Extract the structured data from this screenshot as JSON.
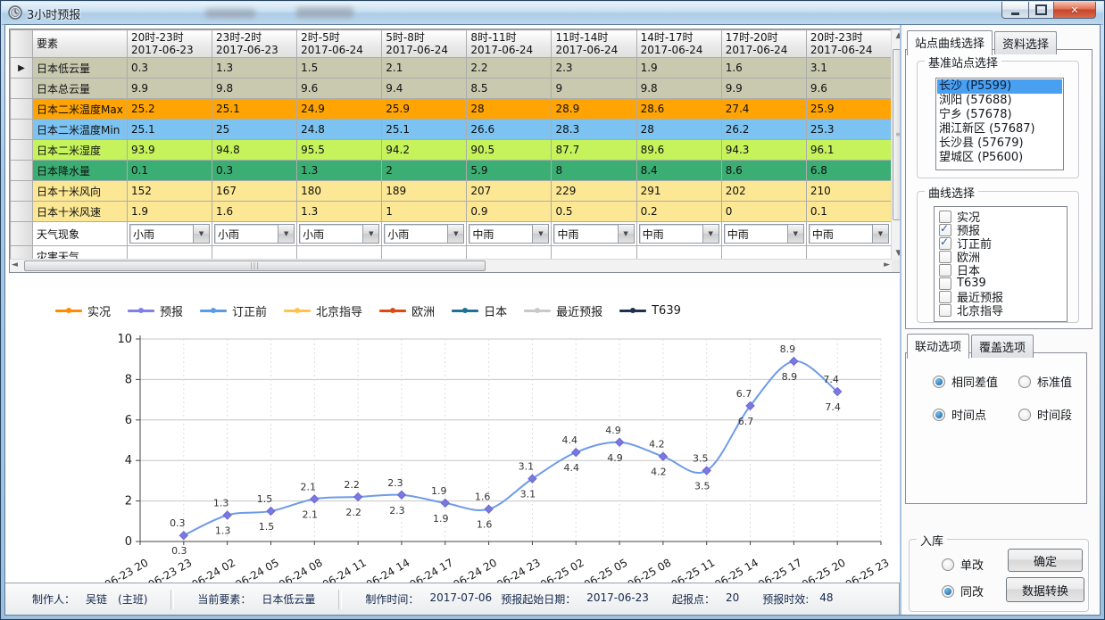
{
  "window": {
    "title": "3小时预报"
  },
  "table": {
    "element_header": "要素",
    "columns": [
      {
        "time": "20时-23时",
        "date": "2017-06-23"
      },
      {
        "time": "23时-2时",
        "date": "2017-06-23"
      },
      {
        "time": "2时-5时",
        "date": "2017-06-24"
      },
      {
        "time": "5时-8时",
        "date": "2017-06-24"
      },
      {
        "time": "8时-11时",
        "date": "2017-06-24"
      },
      {
        "time": "11时-14时",
        "date": "2017-06-24"
      },
      {
        "time": "14时-17时",
        "date": "2017-06-24"
      },
      {
        "time": "17时-20时",
        "date": "2017-06-24"
      },
      {
        "time": "20时-23时",
        "date": "2017-06-24"
      }
    ],
    "rows": [
      {
        "label": "日本低云量",
        "bg": "#C9C9B0",
        "cells": [
          "0.3",
          "1.3",
          "1.5",
          "2.1",
          "2.2",
          "2.3",
          "1.9",
          "1.6",
          "3.1"
        ]
      },
      {
        "label": "日本总云量",
        "bg": "#C9C9B0",
        "cells": [
          "9.9",
          "9.8",
          "9.6",
          "9.4",
          "8.5",
          "9",
          "9.8",
          "9.9",
          "9.6"
        ]
      },
      {
        "label": "日本二米温度Max",
        "bg": "#FFA402",
        "cells": [
          "25.2",
          "25.1",
          "24.9",
          "25.9",
          "28",
          "28.9",
          "28.6",
          "27.4",
          "25.9"
        ]
      },
      {
        "label": "日本二米温度Min",
        "bg": "#7CC3F2",
        "cells": [
          "25.1",
          "25",
          "24.8",
          "25.1",
          "26.6",
          "28.3",
          "28",
          "26.2",
          "25.3"
        ]
      },
      {
        "label": "日本二米湿度",
        "bg": "#C6F35C",
        "cells": [
          "93.9",
          "94.8",
          "95.5",
          "94.2",
          "90.5",
          "87.7",
          "89.6",
          "94.3",
          "96.1"
        ]
      },
      {
        "label": "日本降水量",
        "bg": "#3BAE74",
        "cells": [
          "0.1",
          "0.3",
          "1.3",
          "2",
          "5.9",
          "8",
          "8.4",
          "8.6",
          "6.8"
        ]
      },
      {
        "label": "日本十米风向",
        "bg": "#FCE894",
        "cells": [
          "152",
          "167",
          "180",
          "189",
          "207",
          "229",
          "291",
          "202",
          "210"
        ]
      },
      {
        "label": "日本十米风速",
        "bg": "#FCE894",
        "cells": [
          "1.9",
          "1.6",
          "1.3",
          "1",
          "0.9",
          "0.5",
          "0.2",
          "0",
          "0.1"
        ]
      },
      {
        "label": "天气现象",
        "bg": "#FFFFFF",
        "type": "dropdown",
        "cells": [
          "小雨",
          "小雨",
          "小雨",
          "小雨",
          "中雨",
          "中雨",
          "中雨",
          "中雨",
          "中雨"
        ]
      },
      {
        "label": "灾害天气",
        "bg": "#FFFFFF",
        "cells": [
          "",
          "",
          "",
          "",
          "",
          "",
          "",
          "",
          ""
        ]
      }
    ]
  },
  "chart_data": {
    "type": "line",
    "title": "",
    "xlabel": "",
    "ylabel": "",
    "ylim": [
      0,
      10
    ],
    "yticks": [
      0,
      2,
      4,
      6,
      8,
      10
    ],
    "grid": true,
    "legend_position": "top",
    "x_ticks": [
      "06-23 20",
      "06-23 23",
      "06-24 02",
      "06-24 05",
      "06-24 08",
      "06-24 11",
      "06-24 14",
      "06-24 17",
      "06-24 20",
      "06-24 23",
      "06-25 02",
      "06-25 05",
      "06-25 08",
      "06-25 11",
      "06-25 14",
      "06-25 17",
      "06-25 20",
      "06-25 23"
    ],
    "legend": [
      {
        "name": "实况",
        "color": "#FF8C00"
      },
      {
        "name": "预报",
        "color": "#8080E8"
      },
      {
        "name": "订正前",
        "color": "#5B9BE6"
      },
      {
        "name": "北京指导",
        "color": "#FFC34D"
      },
      {
        "name": "欧洲",
        "color": "#E04A10"
      },
      {
        "name": "日本",
        "color": "#1E7296"
      },
      {
        "name": "最近预报",
        "color": "#C9C9C9"
      },
      {
        "name": "T639",
        "color": "#1F3050"
      }
    ],
    "series": [
      {
        "name": "预报",
        "color": "#7B78E0",
        "marker": "diamond",
        "start_index": 1,
        "values": [
          0.3,
          1.3,
          1.5,
          2.1,
          2.2,
          2.3,
          1.9,
          1.6,
          3.1,
          4.4,
          4.9,
          4.2,
          3.5,
          6.7,
          8.9,
          7.4
        ]
      },
      {
        "name": "订正前",
        "color": "#6E9BE8",
        "marker": "none",
        "start_index": 1,
        "values": [
          0.3,
          1.3,
          1.5,
          2.1,
          2.2,
          2.3,
          1.9,
          1.6,
          3.1,
          4.4,
          4.9,
          4.2,
          3.5,
          6.7,
          8.9,
          7.4
        ]
      }
    ]
  },
  "sidebar": {
    "tabs_top": [
      {
        "label": "站点曲线选择",
        "active": true
      },
      {
        "label": "资料选择",
        "active": false
      }
    ],
    "station_group_title": "基准站点选择",
    "stations": [
      {
        "name": "长沙 (P5599)",
        "selected": true
      },
      {
        "name": "浏阳 (57688)",
        "selected": false
      },
      {
        "name": "宁乡 (57678)",
        "selected": false
      },
      {
        "name": "湘江新区 (57687)",
        "selected": false
      },
      {
        "name": "长沙县 (57679)",
        "selected": false
      },
      {
        "name": "望城区 (P5600)",
        "selected": false
      }
    ],
    "curve_group_title": "曲线选择",
    "curves": [
      {
        "name": "实况",
        "checked": false
      },
      {
        "name": "预报",
        "checked": true
      },
      {
        "name": "订正前",
        "checked": true
      },
      {
        "name": "欧洲",
        "checked": false
      },
      {
        "name": "日本",
        "checked": false
      },
      {
        "name": "T639",
        "checked": false
      },
      {
        "name": "最近预报",
        "checked": false
      },
      {
        "name": "北京指导",
        "checked": false
      }
    ],
    "tabs_mid": [
      {
        "label": "联动选项",
        "active": true
      },
      {
        "label": "覆盖选项",
        "active": false
      }
    ],
    "link_radios": [
      {
        "name": "相同差值",
        "selected": true
      },
      {
        "name": "标准值",
        "selected": false
      },
      {
        "name": "时间点",
        "selected": true
      },
      {
        "name": "时间段",
        "selected": false
      }
    ],
    "storage_group_title": "入库",
    "storage_radios": [
      {
        "name": "单改",
        "selected": false
      },
      {
        "name": "同改",
        "selected": true
      }
    ],
    "confirm_button": "确定",
    "convert_button": "数据转换"
  },
  "statusbar": {
    "fields": [
      {
        "label": "制作人：",
        "value": "吴链　(主班)"
      },
      {
        "label": "当前要素：",
        "value": "日本低云量"
      },
      {
        "label": "制作时间：",
        "value": "2017-07-06"
      },
      {
        "label": "预报起始日期：",
        "value": "2017-06-23"
      },
      {
        "label": "起报点：",
        "value": "20"
      },
      {
        "label": "预报时效:",
        "value": "48"
      }
    ]
  }
}
